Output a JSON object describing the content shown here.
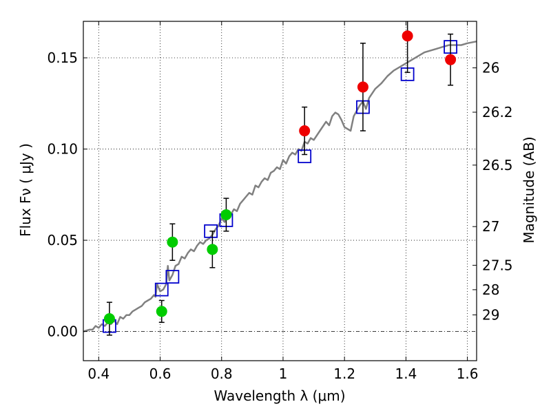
{
  "chart_data": {
    "type": "scatter",
    "title": "",
    "xlabel": "Wavelength  λ (μm)",
    "ylabel": "Flux  Fν  ( μJy )",
    "y2label": "Magnitude (AB)",
    "xlim": [
      0.35,
      1.63
    ],
    "ylim": [
      -0.016,
      0.17
    ],
    "xticks": [
      0.4,
      0.6,
      0.8,
      1.0,
      1.2,
      1.4,
      1.6
    ],
    "xtick_labels": [
      "0.4",
      "0.6",
      "0.8",
      "1",
      "1.2",
      "1.4",
      "1.6"
    ],
    "yticks": [
      0.0,
      0.05,
      0.1,
      0.15
    ],
    "ytick_labels": [
      "0.00",
      "0.05",
      "0.10",
      "0.15"
    ],
    "y2ticks": [
      {
        "label": "26",
        "flux": 0.1445
      },
      {
        "label": "26.2",
        "flux": 0.1202
      },
      {
        "label": "26.5",
        "flux": 0.0912
      },
      {
        "label": "27",
        "flux": 0.0575
      },
      {
        "label": "27.5",
        "flux": 0.0363
      },
      {
        "label": "28",
        "flux": 0.0229
      },
      {
        "label": "29",
        "flux": 0.0091
      }
    ],
    "grid": true,
    "zero_line": true,
    "series": [
      {
        "marker": "line",
        "color": "#808080",
        "x": [
          0.35,
          0.37,
          0.38,
          0.39,
          0.4,
          0.41,
          0.42,
          0.43,
          0.44,
          0.45,
          0.46,
          0.47,
          0.48,
          0.49,
          0.5,
          0.51,
          0.52,
          0.53,
          0.54,
          0.55,
          0.56,
          0.57,
          0.58,
          0.585,
          0.59,
          0.6,
          0.61,
          0.62,
          0.625,
          0.63,
          0.64,
          0.65,
          0.66,
          0.67,
          0.68,
          0.69,
          0.7,
          0.71,
          0.72,
          0.73,
          0.74,
          0.75,
          0.76,
          0.77,
          0.78,
          0.79,
          0.8,
          0.81,
          0.82,
          0.83,
          0.84,
          0.85,
          0.86,
          0.87,
          0.88,
          0.89,
          0.9,
          0.91,
          0.92,
          0.93,
          0.94,
          0.95,
          0.96,
          0.97,
          0.98,
          0.99,
          1.0,
          1.01,
          1.02,
          1.03,
          1.04,
          1.05,
          1.06,
          1.07,
          1.08,
          1.09,
          1.1,
          1.12,
          1.14,
          1.15,
          1.16,
          1.17,
          1.18,
          1.19,
          1.2,
          1.22,
          1.23,
          1.24,
          1.25,
          1.26,
          1.27,
          1.28,
          1.3,
          1.32,
          1.34,
          1.36,
          1.38,
          1.4,
          1.42,
          1.44,
          1.46,
          1.48,
          1.5,
          1.52,
          1.54,
          1.56,
          1.58,
          1.6,
          1.63
        ],
        "y": [
          0.0,
          0.001,
          0.001,
          0.003,
          0.002,
          0.004,
          0.003,
          0.005,
          0.004,
          0.006,
          0.004,
          0.008,
          0.007,
          0.009,
          0.009,
          0.011,
          0.012,
          0.013,
          0.014,
          0.016,
          0.017,
          0.018,
          0.02,
          0.019,
          0.026,
          0.022,
          0.023,
          0.026,
          0.036,
          0.028,
          0.031,
          0.036,
          0.037,
          0.041,
          0.04,
          0.043,
          0.045,
          0.044,
          0.047,
          0.049,
          0.048,
          0.05,
          0.051,
          0.053,
          0.056,
          0.058,
          0.062,
          0.06,
          0.065,
          0.064,
          0.067,
          0.066,
          0.07,
          0.072,
          0.074,
          0.076,
          0.075,
          0.08,
          0.079,
          0.082,
          0.084,
          0.083,
          0.087,
          0.088,
          0.09,
          0.089,
          0.094,
          0.092,
          0.096,
          0.098,
          0.097,
          0.1,
          0.099,
          0.104,
          0.103,
          0.106,
          0.105,
          0.11,
          0.115,
          0.113,
          0.118,
          0.12,
          0.119,
          0.116,
          0.112,
          0.11,
          0.118,
          0.121,
          0.124,
          0.126,
          0.122,
          0.128,
          0.133,
          0.136,
          0.14,
          0.143,
          0.145,
          0.147,
          0.149,
          0.151,
          0.153,
          0.154,
          0.155,
          0.156,
          0.157,
          0.157,
          0.157,
          0.158,
          0.159
        ]
      },
      {
        "marker": "square",
        "color": "#0000cc",
        "x": [
          0.435,
          0.605,
          0.64,
          0.765,
          0.815,
          1.07,
          1.26,
          1.405,
          1.545
        ],
        "y": [
          0.003,
          0.023,
          0.03,
          0.055,
          0.061,
          0.096,
          0.123,
          0.141,
          0.156
        ]
      },
      {
        "marker": "circle",
        "color": "#00cc00",
        "x": [
          0.435,
          0.605,
          0.64,
          0.77,
          0.815
        ],
        "y": [
          0.007,
          0.011,
          0.049,
          0.045,
          0.064
        ],
        "err": [
          0.009,
          0.006,
          0.01,
          0.01,
          0.009
        ]
      },
      {
        "marker": "circle",
        "color": "#ee0000",
        "x": [
          1.07,
          1.26,
          1.405,
          1.545
        ],
        "y": [
          0.11,
          0.134,
          0.162,
          0.149
        ],
        "err": [
          0.013,
          0.024,
          0.02,
          0.014
        ]
      }
    ]
  }
}
